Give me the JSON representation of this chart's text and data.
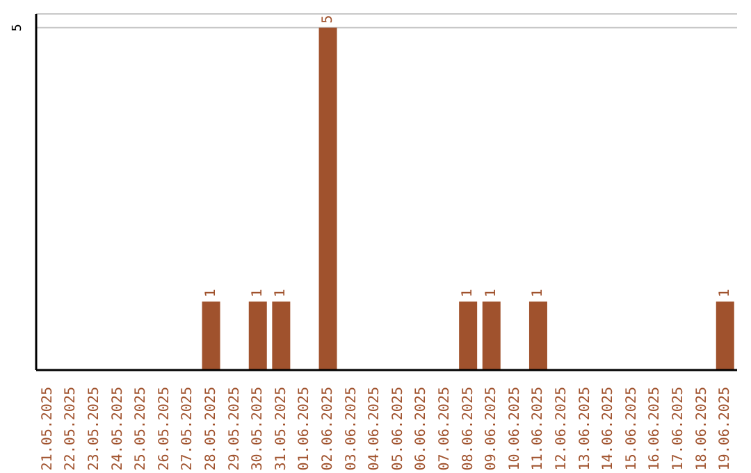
{
  "chart_data": {
    "type": "bar",
    "categories": [
      "21.05.2025",
      "22.05.2025",
      "23.05.2025",
      "24.05.2025",
      "25.05.2025",
      "26.05.2025",
      "27.05.2025",
      "28.05.2025",
      "29.05.2025",
      "30.05.2025",
      "31.05.2025",
      "01.06.2025",
      "02.06.2025",
      "03.06.2025",
      "04.06.2025",
      "05.06.2025",
      "06.06.2025",
      "07.06.2025",
      "08.06.2025",
      "09.06.2025",
      "10.06.2025",
      "11.06.2025",
      "12.06.2025",
      "13.06.2025",
      "14.06.2025",
      "15.06.2025",
      "16.06.2025",
      "17.06.2025",
      "18.06.2025",
      "19.06.2025"
    ],
    "values": [
      0,
      0,
      0,
      0,
      0,
      0,
      0,
      1,
      0,
      1,
      1,
      0,
      5,
      0,
      0,
      0,
      0,
      0,
      1,
      1,
      0,
      1,
      0,
      0,
      0,
      0,
      0,
      0,
      0,
      1
    ],
    "value_labels": [
      null,
      null,
      null,
      null,
      null,
      null,
      null,
      "1",
      null,
      "1",
      "1",
      null,
      "5",
      null,
      null,
      null,
      null,
      null,
      "1",
      "1",
      null,
      "1",
      null,
      null,
      null,
      null,
      null,
      null,
      null,
      "1"
    ],
    "color": "#a0522d",
    "ylim": [
      0,
      5.2
    ],
    "yticks": [
      5
    ],
    "grid": "y"
  }
}
